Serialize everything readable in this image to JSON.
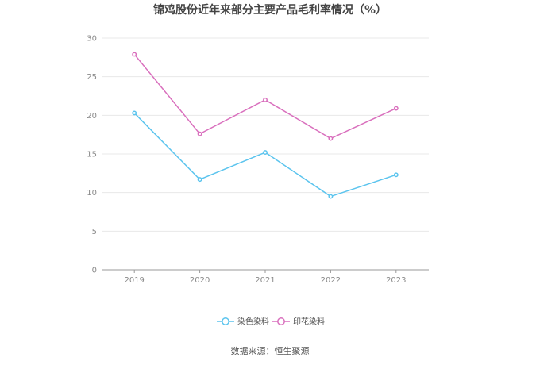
{
  "chart_data": {
    "type": "line",
    "title": "锦鸡股份近年来部分主要产品毛利率情况（%）",
    "xlabel": "",
    "ylabel": "",
    "categories": [
      "2019",
      "2020",
      "2021",
      "2022",
      "2023"
    ],
    "ylim": [
      0,
      30
    ],
    "yticks": [
      0,
      5,
      10,
      15,
      20,
      25,
      30
    ],
    "grid": true,
    "legend": "bottom-center",
    "series": [
      {
        "name": "染色染料",
        "color": "#5bc4ee",
        "values": [
          20.3,
          11.7,
          15.2,
          9.5,
          12.3
        ]
      },
      {
        "name": "印花染料",
        "color": "#d96fbd",
        "values": [
          27.9,
          17.6,
          22.0,
          17.0,
          20.9
        ]
      }
    ]
  },
  "footer": {
    "source": "数据来源：恒生聚源"
  }
}
